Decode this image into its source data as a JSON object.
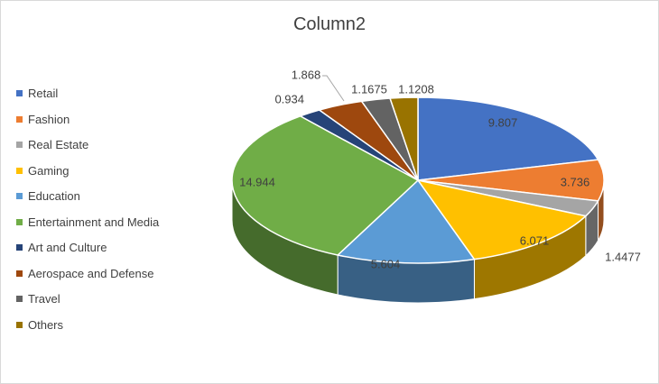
{
  "chart_data": {
    "type": "pie",
    "variant": "3d",
    "title": "Column2",
    "legend_position": "left",
    "categories": [
      "Retail",
      "Fashion",
      "Real Estate",
      "Gaming",
      "Education",
      "Entertainment and Media",
      "Art and Culture",
      "Aerospace and Defense",
      "Travel",
      "Others"
    ],
    "values": [
      9.807,
      3.736,
      1.4477,
      6.071,
      5.604,
      14.944,
      0.934,
      1.868,
      1.1675,
      1.1208
    ],
    "value_labels": [
      "9.807",
      "3.736",
      "1.4477",
      "6.071",
      "5.604",
      "14.944",
      "0.934",
      "1.868",
      "1.1675",
      "1.1208"
    ],
    "colors": [
      "#4472C4",
      "#ED7D31",
      "#A5A5A5",
      "#FFC000",
      "#5B9BD5",
      "#70AD47",
      "#264478",
      "#9E480E",
      "#636363",
      "#997300"
    ]
  }
}
